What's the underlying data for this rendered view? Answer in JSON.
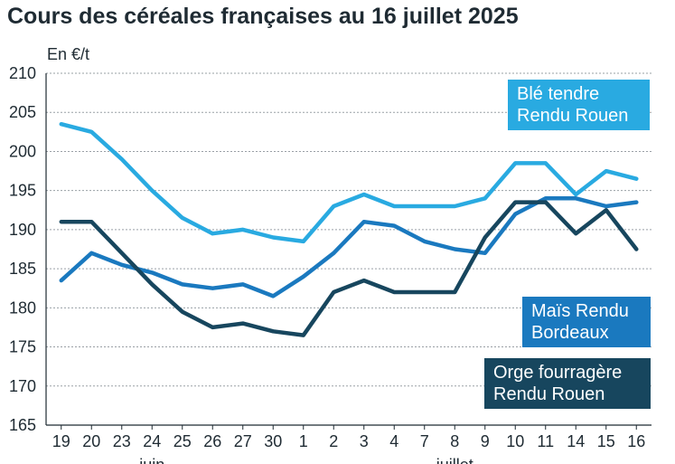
{
  "chart_data": {
    "type": "line",
    "title": "Cours des céréales françaises au 16 juillet 2025",
    "ylabel": "En €/t",
    "xlabel": "",
    "ylim": [
      165,
      210
    ],
    "yticks": [
      165,
      170,
      175,
      180,
      185,
      190,
      195,
      200,
      205,
      210
    ],
    "grid": "horizontal dashed",
    "categories": [
      "19",
      "20",
      "23",
      "24",
      "25",
      "26",
      "27",
      "30",
      "1",
      "2",
      "3",
      "4",
      "7",
      "8",
      "9",
      "10",
      "11",
      "14",
      "15",
      "16"
    ],
    "month_labels": [
      {
        "label": "juin",
        "category_index": 3
      },
      {
        "label": "juillet",
        "category_index": 13
      }
    ],
    "series": [
      {
        "name": "Blé tendre Rendu Rouen",
        "legend": [
          "Blé tendre",
          "Rendu Rouen"
        ],
        "color": "#29aae1",
        "values": [
          203.5,
          202.5,
          199.0,
          195.0,
          191.5,
          189.5,
          190.0,
          189.0,
          188.5,
          193.0,
          194.5,
          193.0,
          193.0,
          193.0,
          194.0,
          198.5,
          198.5,
          194.5,
          197.5,
          196.5
        ]
      },
      {
        "name": "Maïs Rendu Bordeaux",
        "legend": [
          "Maïs Rendu",
          "Bordeaux"
        ],
        "color": "#1a79bf",
        "values": [
          183.5,
          187.0,
          185.5,
          184.5,
          183.0,
          182.5,
          183.0,
          181.5,
          184.0,
          187.0,
          191.0,
          190.5,
          188.5,
          187.5,
          187.0,
          192.0,
          194.0,
          194.0,
          193.0,
          193.5
        ]
      },
      {
        "name": "Orge fourragère Rendu Rouen",
        "legend": [
          "Orge fourragère",
          "Rendu Rouen"
        ],
        "color": "#17465e",
        "values": [
          191.0,
          191.0,
          187.0,
          183.0,
          179.5,
          177.5,
          178.0,
          177.0,
          176.5,
          182.0,
          183.5,
          182.0,
          182.0,
          182.0,
          189.0,
          193.5,
          193.5,
          189.5,
          192.5,
          187.5
        ]
      }
    ]
  }
}
